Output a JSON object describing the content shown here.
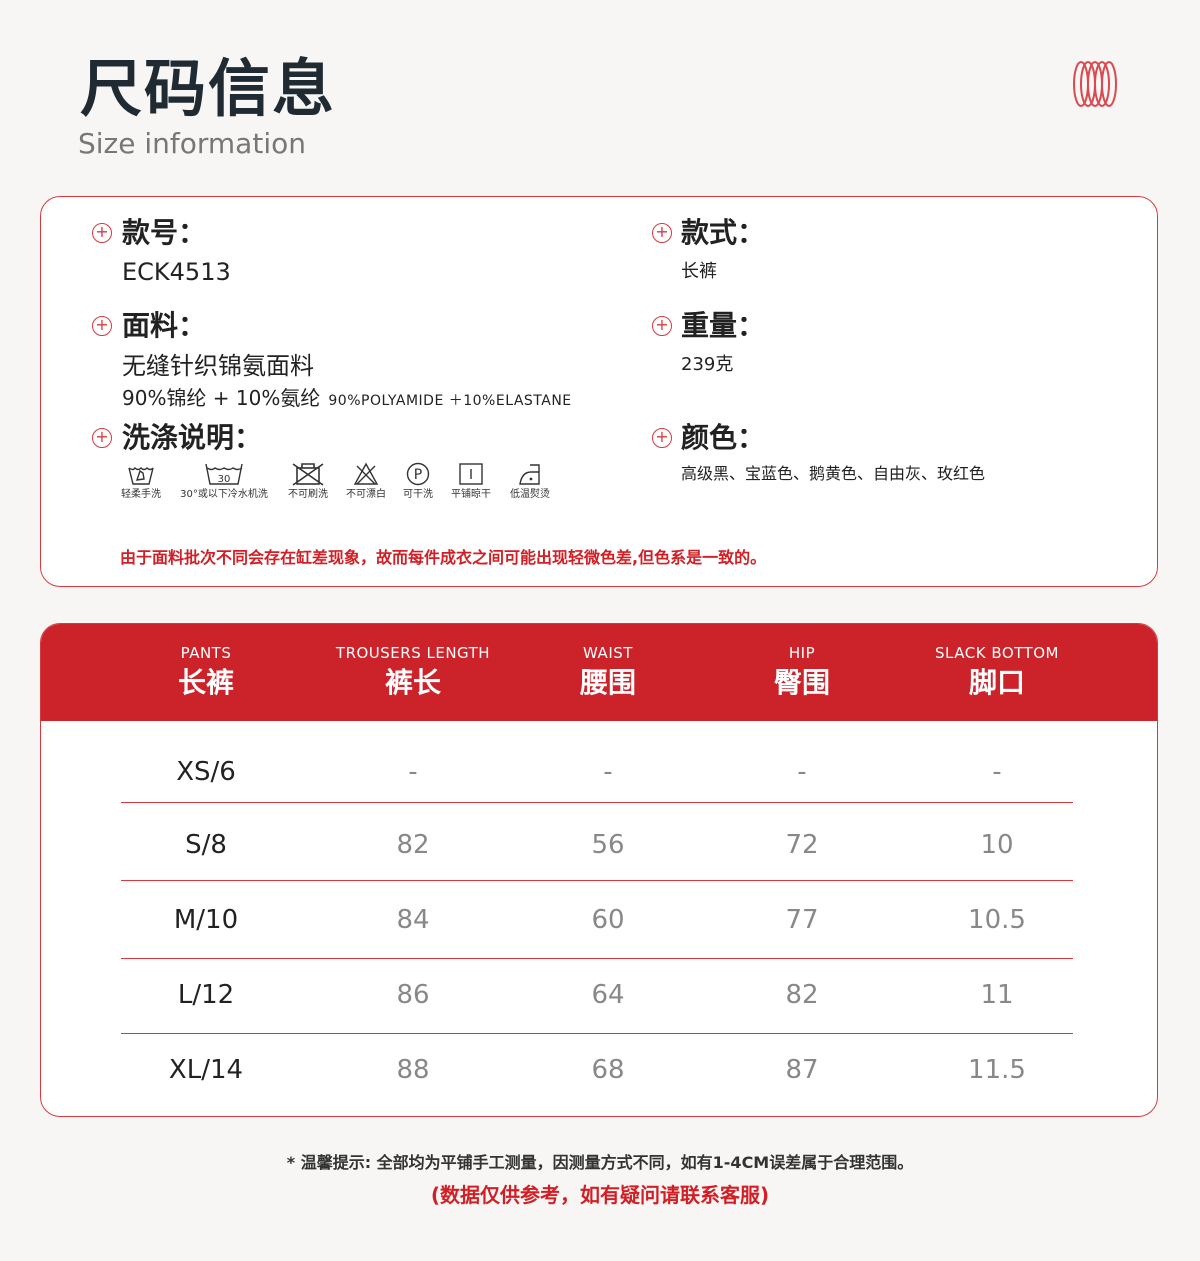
{
  "header": {
    "title": "尺码信息",
    "subtitle": "Size information",
    "logo_icon": "red-coil-logo"
  },
  "info": {
    "style_no": {
      "label": "款号：",
      "value": "ECK4513"
    },
    "fabric": {
      "label": "面料：",
      "value": "无缝针织锦氨面料",
      "detail_cn": "90%锦纶 + 10%氨纶",
      "detail_en": "90%POLYAMIDE ＋10%ELASTANE"
    },
    "wash": {
      "label": "洗涤说明：",
      "items": [
        {
          "icon": "hand-wash-icon",
          "label": "轻柔手洗"
        },
        {
          "icon": "machine-wash-30-icon",
          "label": "30°或以下冷水机洗",
          "temp": "30"
        },
        {
          "icon": "no-brush-wash-icon",
          "label": "不可刷洗"
        },
        {
          "icon": "no-bleach-icon",
          "label": "不可漂白"
        },
        {
          "icon": "dry-clean-p-icon",
          "label": "可干洗",
          "letter": "P"
        },
        {
          "icon": "dry-flat-icon",
          "label": "平铺晾干"
        },
        {
          "icon": "low-iron-icon",
          "label": "低温熨烫"
        }
      ]
    },
    "style": {
      "label": "款式：",
      "value": "长裤"
    },
    "weight": {
      "label": "重量：",
      "value": "239克"
    },
    "color": {
      "label": "颜色：",
      "value": "高级黑、宝蓝色、鹅黄色、自由灰、玫红色"
    },
    "note": "由于面料批次不同会存在缸差现象，故而每件成衣之间可能出现轻微色差,但色系是一致的。"
  },
  "table": {
    "columns": [
      {
        "en": "PANTS",
        "cn": "长裤"
      },
      {
        "en": "TROUSERS LENGTH",
        "cn": "裤长"
      },
      {
        "en": "WAIST",
        "cn": "腰围"
      },
      {
        "en": "HIP",
        "cn": "臀围"
      },
      {
        "en": "SLACK BOTTOM",
        "cn": "脚口"
      }
    ],
    "rows": [
      [
        "XS/6",
        "-",
        "-",
        "-",
        "-"
      ],
      [
        "S/8",
        "82",
        "56",
        "72",
        "10"
      ],
      [
        "M/10",
        "84",
        "60",
        "77",
        "10.5"
      ],
      [
        "L/12",
        "86",
        "64",
        "82",
        "11"
      ],
      [
        "XL/14",
        "88",
        "68",
        "87",
        "11.5"
      ]
    ]
  },
  "footer": {
    "tip": "* 温馨提示: 全部均为平铺手工测量，因测量方式不同，如有1-4CM误差属于合理范围。",
    "ref": "(数据仅供参考，如有疑问请联系客服)"
  },
  "colors": {
    "accent": "#cc2229",
    "background": "#f7f6f4"
  }
}
